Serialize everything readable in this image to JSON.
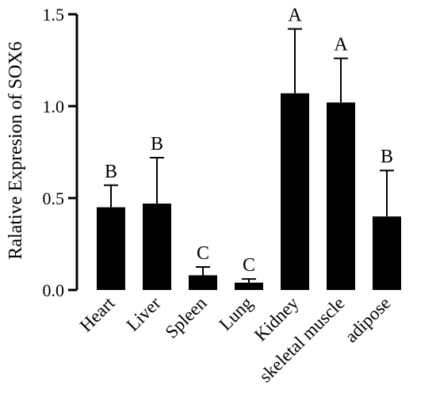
{
  "chart_data": {
    "type": "bar",
    "title": "",
    "xlabel": "",
    "ylabel": "Ralative Expresion of SOX6",
    "ylim": [
      0,
      1.5
    ],
    "yticks": [
      "0.0",
      "0.5",
      "1.0",
      "1.5"
    ],
    "ytick_values": [
      0,
      0.5,
      1.0,
      1.5
    ],
    "categories": [
      "Heart",
      "Liver",
      "Spleen",
      "Lung",
      "Kidney",
      "skeletal muscle",
      "adipose"
    ],
    "values": [
      0.45,
      0.47,
      0.08,
      0.04,
      1.07,
      1.02,
      0.4
    ],
    "error_upper": [
      0.12,
      0.25,
      0.045,
      0.02,
      0.35,
      0.24,
      0.25
    ],
    "significance": [
      "B",
      "B",
      "C",
      "C",
      "A",
      "A",
      "B"
    ],
    "colors": {
      "bar": "#000000"
    },
    "grid": false
  }
}
